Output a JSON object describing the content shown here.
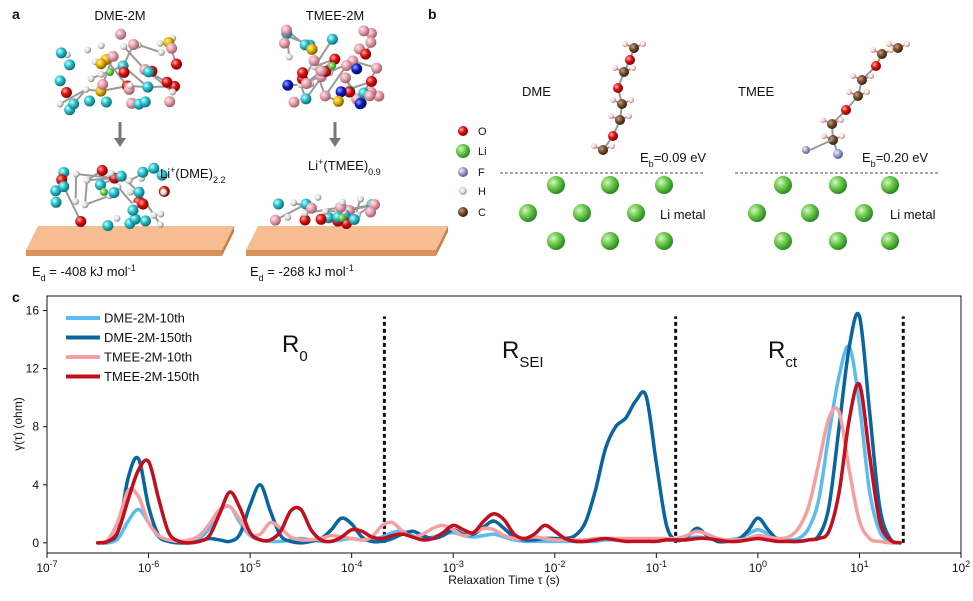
{
  "panel_a": {
    "label": "a",
    "left_title": "DME-2M",
    "right_title": "TMEE-2M",
    "left_complex": [
      "Li",
      "+",
      "(DME)",
      "2.2"
    ],
    "right_complex": [
      "Li",
      "+",
      "(TMEE)",
      "0.9"
    ],
    "left_energy": [
      "E",
      "d",
      " = -408 kJ mol",
      "-1"
    ],
    "right_energy": [
      "E",
      "d",
      " = -268 kJ mol",
      "-1"
    ]
  },
  "panel_b": {
    "label": "b",
    "legend": [
      "O",
      "Li",
      "F",
      "H",
      "C"
    ],
    "left_molecule": "DME",
    "right_molecule": "TMEE",
    "left_energy": [
      "E",
      "b",
      "=0.09 eV"
    ],
    "right_energy": [
      "E",
      "b",
      "=0.20 eV"
    ],
    "left_surface": "Li metal",
    "right_surface": "Li metal"
  },
  "chart_data": {
    "type": "line",
    "panel_label": "c",
    "x_label": "Relaxation Time τ (s)",
    "y_label": "γ(τ) (ohm)",
    "regions": [
      [
        "R",
        "0"
      ],
      [
        "R",
        "SEI"
      ],
      [
        "R",
        "ct"
      ]
    ],
    "dividers": {
      "x": [
        0.00021,
        0.155,
        27
      ],
      "y_range": [
        0,
        15.6
      ]
    },
    "log_x": true,
    "xlim": [
      1e-07,
      100
    ],
    "xticks": [
      {
        "value": 1e-07,
        "label": [
          "10",
          "-7"
        ]
      },
      {
        "value": 1e-06,
        "label": [
          "10",
          "-6"
        ]
      },
      {
        "value": 1e-05,
        "label": [
          "10",
          "-5"
        ]
      },
      {
        "value": 0.0001,
        "label": [
          "10",
          "-4"
        ]
      },
      {
        "value": 0.001,
        "label": [
          "10",
          "-3"
        ]
      },
      {
        "value": 0.01,
        "label": [
          "10",
          "-2"
        ]
      },
      {
        "value": 0.1,
        "label": [
          "10",
          "-1"
        ]
      },
      {
        "value": 1,
        "label": [
          "10",
          "0"
        ]
      },
      {
        "value": 10,
        "label": [
          "10",
          "1"
        ]
      },
      {
        "value": 100,
        "label": [
          "10",
          "2"
        ]
      }
    ],
    "ylim": [
      -0.7,
      17
    ],
    "yticks": [
      0,
      4,
      8,
      12,
      16
    ],
    "legend": "upper left",
    "x": [
      3.16e-07,
      3.98e-07,
      5.01e-07,
      6.31e-07,
      7.94e-07,
      1e-06,
      1.26e-06,
      1.58e-06,
      2e-06,
      2.51e-06,
      3.16e-06,
      3.98e-06,
      5.01e-06,
      6.31e-06,
      7.94e-06,
      1e-05,
      1.26e-05,
      1.58e-05,
      2e-05,
      2.51e-05,
      3.16e-05,
      3.98e-05,
      5.01e-05,
      6.31e-05,
      7.94e-05,
      0.0001,
      0.000126,
      0.000158,
      0.0002,
      0.000251,
      0.000316,
      0.000398,
      0.000501,
      0.000631,
      0.000794,
      0.001,
      0.00126,
      0.00158,
      0.002,
      0.00251,
      0.00316,
      0.00398,
      0.00501,
      0.00631,
      0.00794,
      0.01,
      0.0126,
      0.0158,
      0.02,
      0.0251,
      0.0316,
      0.0398,
      0.0501,
      0.0631,
      0.0794,
      0.1,
      0.126,
      0.158,
      0.2,
      0.251,
      0.316,
      0.398,
      0.501,
      0.631,
      0.794,
      1,
      1.26,
      1.58,
      2,
      2.51,
      3.16,
      3.98,
      5.01,
      6.31,
      7.94,
      10,
      12.6,
      15.8,
      20,
      25.1
    ],
    "series": [
      {
        "name": "DME-2M-10th",
        "color": "#5bbcf0",
        "values": [
          0,
          0,
          0.3,
          1.5,
          2.3,
          1.4,
          0.4,
          0.1,
          0,
          0.1,
          0.3,
          1.0,
          2.2,
          2.5,
          1.4,
          0.5,
          0.2,
          0.1,
          0.1,
          0.2,
          0.3,
          0.2,
          0.1,
          0.1,
          0.2,
          0.3,
          0.2,
          0.2,
          0.4,
          0.7,
          0.8,
          0.5,
          0.3,
          0.4,
          0.6,
          0.7,
          0.5,
          0.4,
          0.5,
          0.6,
          0.4,
          0.2,
          0.1,
          0.1,
          0.1,
          0.1,
          0.1,
          0.1,
          0.1,
          0.1,
          0.2,
          0.2,
          0.2,
          0.2,
          0.2,
          0.2,
          0.2,
          0.2,
          0.3,
          0.4,
          0.3,
          0.2,
          0.2,
          0.3,
          0.6,
          0.9,
          0.6,
          0.3,
          0.2,
          0.3,
          1.0,
          3.0,
          7.5,
          11.5,
          13.5,
          9.5,
          3.5,
          0.8,
          0.1,
          0
        ]
      },
      {
        "name": "DME-2M-150th",
        "color": "#0a64a0",
        "values": [
          0,
          0.1,
          0.8,
          4.5,
          5.8,
          2.5,
          0.5,
          0.1,
          0,
          0,
          0.1,
          0.3,
          0.2,
          0.1,
          0.6,
          2.6,
          4.0,
          2.2,
          0.5,
          0.1,
          0,
          0.1,
          0.3,
          0.9,
          1.7,
          1.3,
          0.4,
          0.1,
          0.1,
          0.3,
          0.6,
          0.8,
          0.5,
          0.3,
          0.5,
          0.9,
          0.6,
          0.6,
          1.1,
          1.5,
          1.0,
          0.4,
          0.2,
          0.2,
          0.3,
          0.3,
          0.3,
          0.5,
          1.4,
          3.6,
          6.5,
          8.0,
          8.6,
          9.8,
          10.1,
          5.5,
          1.2,
          0.2,
          0.4,
          1.0,
          0.5,
          0.1,
          0.1,
          0.2,
          0.8,
          1.7,
          0.9,
          0.2,
          0.1,
          0.1,
          0.2,
          0.5,
          2.5,
          8.0,
          13.5,
          15.6,
          9.0,
          2.5,
          0.3,
          0
        ]
      },
      {
        "name": "TMEE-2M-10th",
        "color": "#f4a0a0",
        "values": [
          0,
          0.2,
          1.5,
          3.6,
          3.2,
          1.4,
          0.5,
          0.2,
          0.1,
          0.2,
          0.5,
          1.3,
          2.3,
          2.5,
          1.6,
          0.6,
          0.6,
          1.4,
          1.0,
          0.4,
          0.2,
          0.2,
          0.3,
          0.5,
          0.4,
          0.3,
          0.2,
          0.4,
          1.2,
          1.4,
          0.8,
          0.4,
          0.6,
          1.0,
          1.2,
          0.9,
          0.5,
          0.7,
          1.0,
          0.9,
          0.5,
          0.3,
          0.3,
          0.4,
          0.3,
          0.2,
          0.2,
          0.2,
          0.2,
          0.3,
          0.3,
          0.3,
          0.3,
          0.3,
          0.3,
          0.3,
          0.3,
          0.3,
          0.5,
          0.8,
          0.6,
          0.3,
          0.2,
          0.2,
          0.3,
          0.5,
          0.4,
          0.3,
          0.4,
          1.0,
          2.5,
          5.5,
          8.6,
          9.0,
          5.0,
          1.5,
          0.3,
          0.1,
          0,
          0
        ]
      },
      {
        "name": "TMEE-2M-150th",
        "color": "#c00f1e",
        "values": [
          0,
          0.1,
          0.8,
          3.0,
          5.0,
          5.6,
          3.0,
          0.7,
          0.1,
          0,
          0.1,
          0.5,
          2.0,
          3.5,
          2.4,
          0.7,
          0.2,
          0.2,
          0.8,
          2.2,
          2.3,
          0.9,
          0.2,
          0.1,
          0.4,
          0.9,
          0.8,
          0.4,
          0.3,
          0.5,
          0.6,
          0.4,
          0.2,
          0.3,
          0.7,
          1.2,
          0.9,
          0.7,
          1.5,
          2.0,
          1.6,
          0.6,
          0.3,
          0.6,
          1.2,
          0.8,
          0.3,
          0.1,
          0.1,
          0.2,
          0.3,
          0.2,
          0.1,
          0.1,
          0.1,
          0.1,
          0.2,
          0.2,
          0.2,
          0.3,
          0.3,
          0.2,
          0.1,
          0.1,
          0.2,
          0.3,
          0.2,
          0.1,
          0.1,
          0.1,
          0.2,
          0.3,
          0.8,
          3.5,
          8.5,
          10.9,
          6.0,
          1.5,
          0.2,
          0
        ]
      }
    ]
  }
}
